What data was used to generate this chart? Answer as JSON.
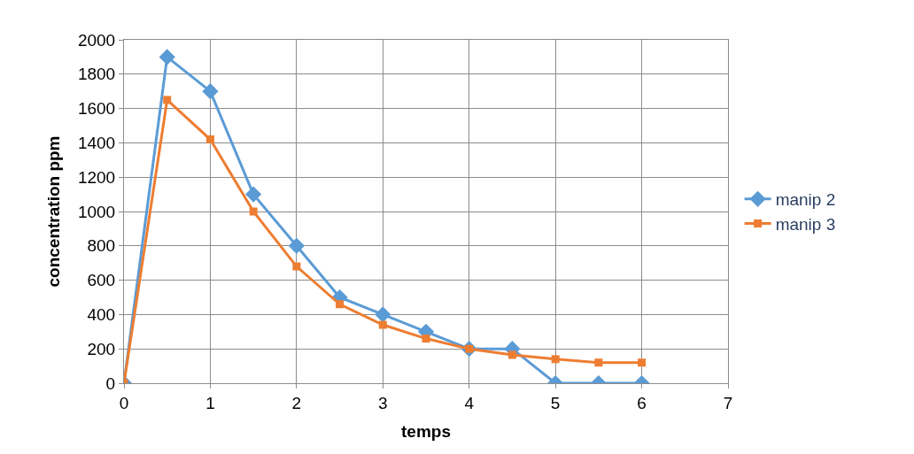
{
  "chart_data": {
    "type": "line",
    "xlabel": "temps",
    "ylabel": "concentration ppm",
    "x": [
      0,
      0.5,
      1,
      1.5,
      2,
      2.5,
      3,
      3.5,
      4,
      4.5,
      5,
      5.5,
      6
    ],
    "series": [
      {
        "name": "manip 2",
        "color": "#5b9bd5",
        "marker": "diamond",
        "values": [
          0,
          1900,
          1700,
          1100,
          800,
          500,
          400,
          300,
          200,
          200,
          0,
          0,
          0
        ]
      },
      {
        "name": "manip 3",
        "color": "#ed7d31",
        "marker": "square",
        "values": [
          0,
          1650,
          1420,
          1000,
          680,
          460,
          340,
          260,
          200,
          165,
          140,
          120,
          120
        ]
      }
    ],
    "xlim": [
      0,
      7
    ],
    "xticks": [
      0,
      1,
      2,
      3,
      4,
      5,
      6,
      7
    ],
    "ylim": [
      0,
      2000
    ],
    "yticks": [
      0,
      200,
      400,
      600,
      800,
      1000,
      1200,
      1400,
      1600,
      1800,
      2000
    ],
    "grid": true,
    "legend": "right",
    "line_style": "solid"
  }
}
